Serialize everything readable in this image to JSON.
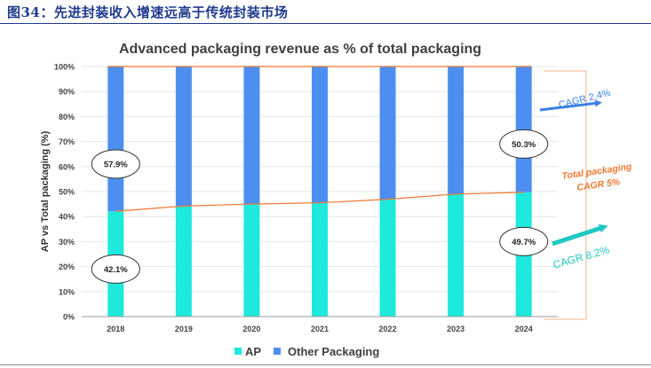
{
  "caption": "图34：先进封装收入增速远高于传统封装市场",
  "chart_data": {
    "type": "bar",
    "stacked": true,
    "title": "Advanced packaging revenue as % of total packaging",
    "ylabel": "AP vs Total packaging (%)",
    "ylim": [
      0,
      100
    ],
    "yticks": [
      "0%",
      "10%",
      "20%",
      "30%",
      "40%",
      "50%",
      "60%",
      "70%",
      "80%",
      "90%",
      "100%"
    ],
    "categories": [
      "2018",
      "2019",
      "2020",
      "2021",
      "2022",
      "2023",
      "2024"
    ],
    "series": [
      {
        "name": "AP",
        "color": "#1de9dc",
        "values": [
          42.1,
          44.2,
          45.0,
          45.5,
          46.9,
          49.0,
          49.7
        ]
      },
      {
        "name": "Other Packaging",
        "color": "#4d8ff0",
        "values": [
          57.9,
          55.8,
          55.0,
          54.5,
          53.1,
          51.0,
          50.3
        ]
      }
    ],
    "line_color": "#f07830",
    "legend_position": "bottom",
    "data_labels": [
      {
        "text": "57.9%",
        "category": "2018",
        "y": 61
      },
      {
        "text": "42.1%",
        "category": "2018",
        "y": 19
      },
      {
        "text": "50.3%",
        "category": "2024",
        "y": 69
      },
      {
        "text": "49.7%",
        "category": "2024",
        "y": 30
      }
    ],
    "annotations": [
      {
        "text": "CAGR 2.4%",
        "color": "#3a7fe8"
      },
      {
        "text": "Total packaging",
        "color": "#f07830"
      },
      {
        "text": "CAGR 5%",
        "color": "#f07830"
      },
      {
        "text": "CAGR 8.2%",
        "color": "#1ec9c4"
      }
    ]
  }
}
